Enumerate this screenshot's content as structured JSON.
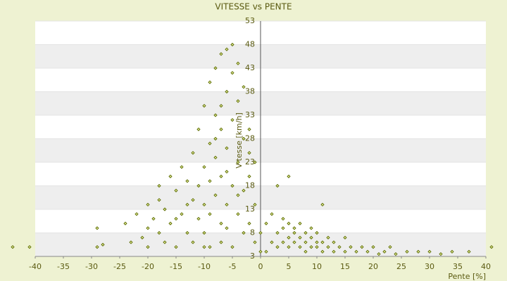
{
  "chart_data": {
    "type": "scatter",
    "title": "VITESSE vs PENTE",
    "x_label": "Pente [%]",
    "y_label": "Vitesse [km/h]",
    "x": [
      -44,
      -41,
      -29,
      -28,
      -29,
      -24,
      -23,
      -22,
      -21,
      -20,
      -20,
      -19,
      -18,
      -18,
      -17,
      -17,
      -16,
      -16,
      -15,
      -15,
      -14,
      -14,
      -13,
      -13,
      -12,
      -12,
      -12,
      -11,
      -11,
      -11,
      -10,
      -10,
      -10,
      -10,
      -9,
      -9,
      -9,
      -9,
      -8,
      -8,
      -8,
      -8,
      -7,
      -7,
      -7,
      -7,
      -7,
      -6,
      -6,
      -6,
      -6,
      -6,
      -5,
      -5,
      -5,
      -5,
      -5,
      -4,
      -4,
      -4,
      -4,
      -3,
      -3,
      -3,
      -3,
      -2,
      -2,
      -2,
      -1,
      -1,
      -1,
      0,
      0,
      -13,
      -15,
      -18,
      -9,
      -6,
      -4,
      -2,
      -20,
      -10,
      -7,
      -8,
      1,
      1,
      2,
      2,
      3,
      3,
      3,
      4,
      4,
      4,
      5,
      5,
      5,
      5,
      6,
      6,
      6,
      7,
      7,
      7,
      8,
      8,
      8,
      9,
      9,
      9,
      10,
      10,
      10,
      11,
      11,
      11,
      12,
      12,
      13,
      13,
      14,
      15,
      15,
      16,
      17,
      18,
      19,
      20,
      21,
      22,
      23,
      24,
      26,
      28,
      30,
      32,
      34,
      37,
      41
    ],
    "values": [
      5,
      5,
      5,
      5.5,
      9,
      10,
      6,
      12,
      7,
      14,
      9,
      11,
      8,
      15,
      13,
      6,
      20,
      10,
      17,
      5,
      12,
      22,
      8,
      19,
      15,
      25,
      6,
      11,
      18,
      30,
      14,
      22,
      35,
      8,
      12,
      27,
      40,
      5,
      16,
      24,
      33,
      43,
      10,
      20,
      30,
      46,
      6,
      14,
      26,
      38,
      47,
      9,
      18,
      32,
      42,
      48,
      5,
      12,
      23,
      36,
      44,
      8,
      17,
      28,
      39,
      10,
      20,
      30,
      6,
      14,
      23,
      4,
      8,
      14,
      11,
      18,
      19,
      21,
      16,
      25,
      5,
      5,
      35,
      28,
      4,
      10,
      6,
      12,
      5,
      8,
      18,
      6,
      9,
      11,
      5,
      7,
      10,
      20,
      6,
      8,
      9,
      5,
      7,
      10,
      4,
      6,
      8,
      5,
      7,
      9,
      5,
      6,
      8,
      4,
      6,
      14,
      5,
      7,
      4,
      6,
      5,
      4,
      7,
      5,
      4,
      5,
      4,
      5,
      3.5,
      4,
      5,
      3.5,
      4,
      4,
      4,
      3.5,
      4,
      4,
      5
    ],
    "color": "#5a6b00",
    "xlim": [
      -40,
      40
    ],
    "xticks": [
      -40,
      -35,
      -30,
      -25,
      -20,
      -15,
      -10,
      -5,
      0,
      5,
      10,
      15,
      20,
      25,
      30,
      35,
      40
    ],
    "ylim": [
      3,
      53
    ],
    "yticks": [
      3,
      8,
      13,
      18,
      23,
      28,
      33,
      38,
      43,
      48,
      53
    ],
    "grid_bands": true
  }
}
